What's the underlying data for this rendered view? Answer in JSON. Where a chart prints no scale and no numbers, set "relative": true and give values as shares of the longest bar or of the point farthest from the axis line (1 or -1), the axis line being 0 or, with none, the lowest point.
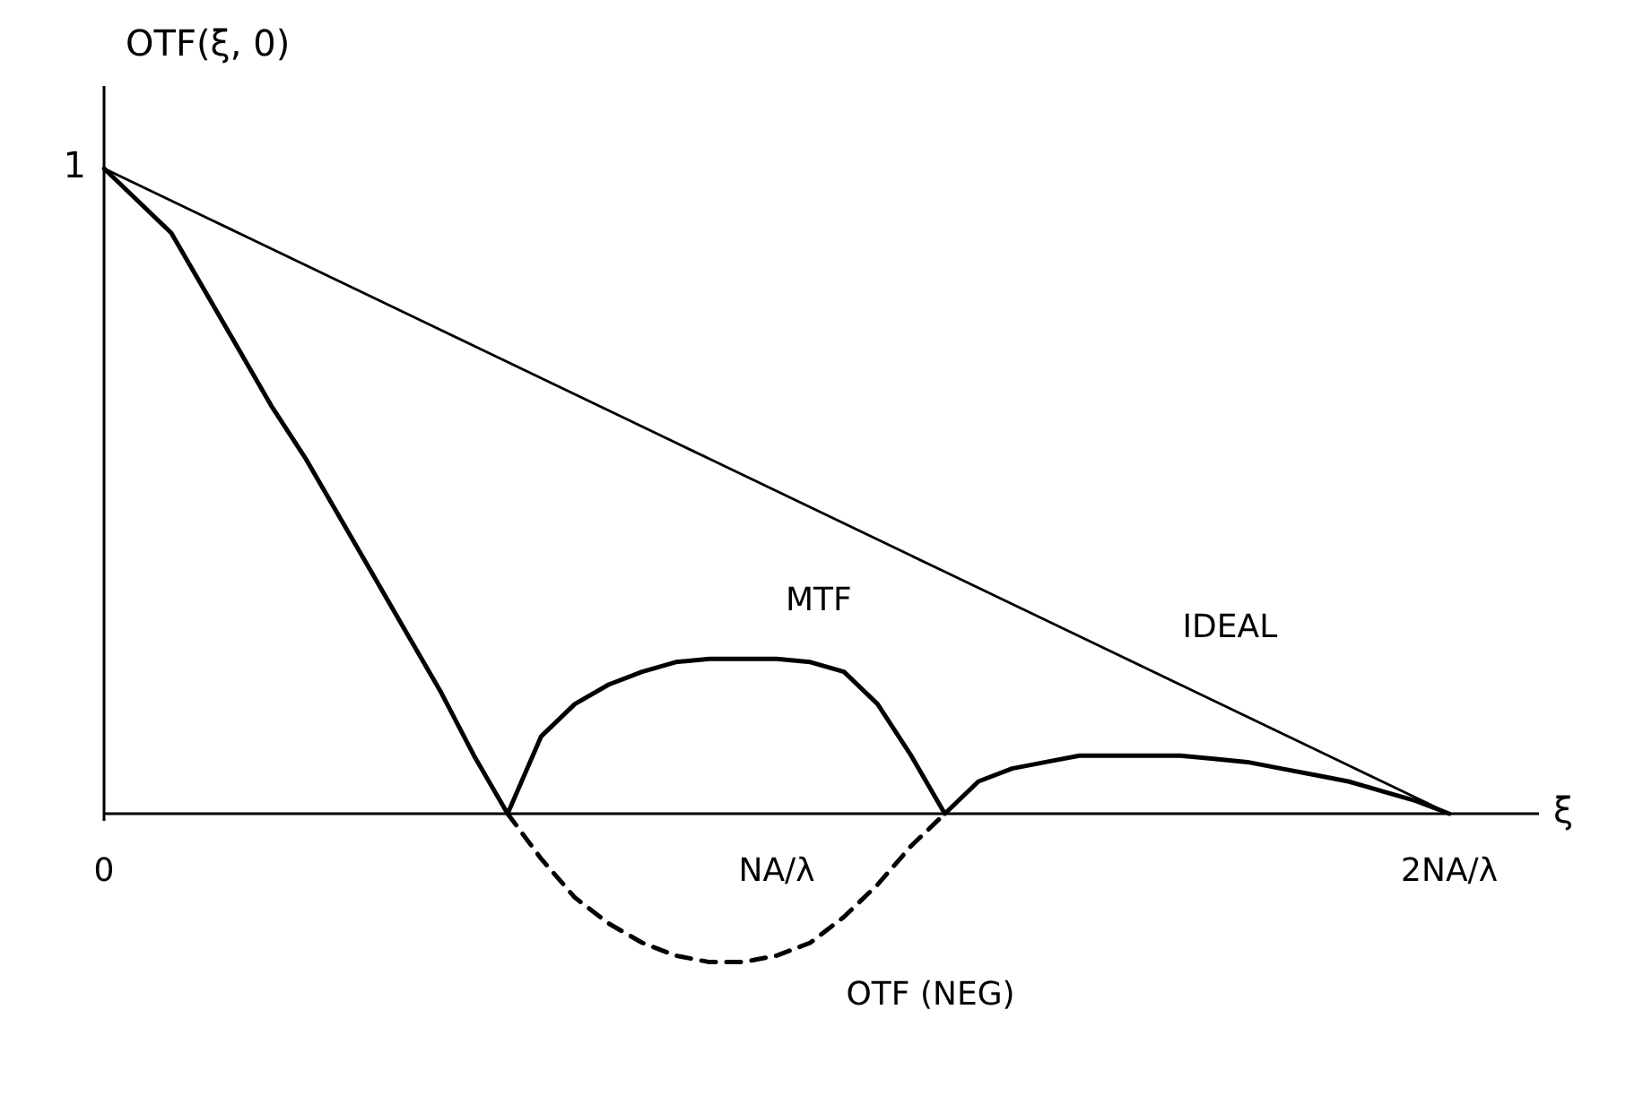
{
  "chart_data": {
    "type": "line",
    "xlabel": "ξ",
    "ylabel": "OTF(ξ, 0)",
    "relative": true,
    "legend": false,
    "marker": "none",
    "categories": [
      "0",
      null,
      null,
      null,
      null,
      null,
      null,
      null,
      null,
      null,
      null,
      null,
      null,
      null,
      null,
      null,
      null,
      null,
      null,
      null,
      "NA/λ",
      null,
      null,
      null,
      null,
      null,
      null,
      null,
      null,
      null,
      null,
      null,
      null,
      null,
      null,
      null,
      null,
      null,
      null,
      null,
      "2NA/λ"
    ],
    "annotations": [
      "1"
    ],
    "series": [
      {
        "name": "IDEAL",
        "color": "#000000",
        "values": [
          1,
          0.975,
          0.95,
          0.925,
          0.9,
          0.875,
          0.85,
          0.825,
          0.8,
          0.775,
          0.75,
          0.725,
          0.7,
          0.675,
          0.65,
          0.625,
          0.6,
          0.575,
          0.55,
          0.525,
          0.5,
          0.475,
          0.45,
          0.425,
          0.4,
          0.375,
          0.35,
          0.325,
          0.3,
          0.275,
          0.25,
          0.225,
          0.2,
          0.175,
          0.15,
          0.125,
          0.1,
          0.075,
          0.05,
          0.025,
          0
        ]
      },
      {
        "name": "MTF",
        "color": "#000000",
        "values": [
          1,
          0.95,
          0.9,
          0.81,
          0.72,
          0.63,
          0.55,
          0.46,
          0.37,
          0.28,
          0.19,
          0.09,
          0,
          0.12,
          0.17,
          0.2,
          0.22,
          0.235,
          0.24,
          0.24,
          0.24,
          0.235,
          0.22,
          0.17,
          0.09,
          0,
          0.05,
          0.07,
          0.08,
          0.09,
          0.09,
          0.09,
          0.09,
          0.085,
          0.08,
          0.07,
          0.06,
          0.05,
          0.035,
          0.02,
          0
        ]
      },
      {
        "name": "OTF (NEG)",
        "color": "#000000",
        "line_style": "dashed",
        "values": [
          null,
          null,
          null,
          null,
          null,
          null,
          null,
          null,
          null,
          null,
          null,
          null,
          0,
          -0.07,
          -0.13,
          -0.17,
          -0.2,
          -0.22,
          -0.23,
          -0.23,
          -0.22,
          -0.2,
          -0.16,
          -0.11,
          -0.05,
          0,
          null,
          null,
          null,
          null,
          null,
          null,
          null,
          null,
          null,
          null,
          null,
          null,
          null,
          null,
          null
        ]
      }
    ]
  }
}
